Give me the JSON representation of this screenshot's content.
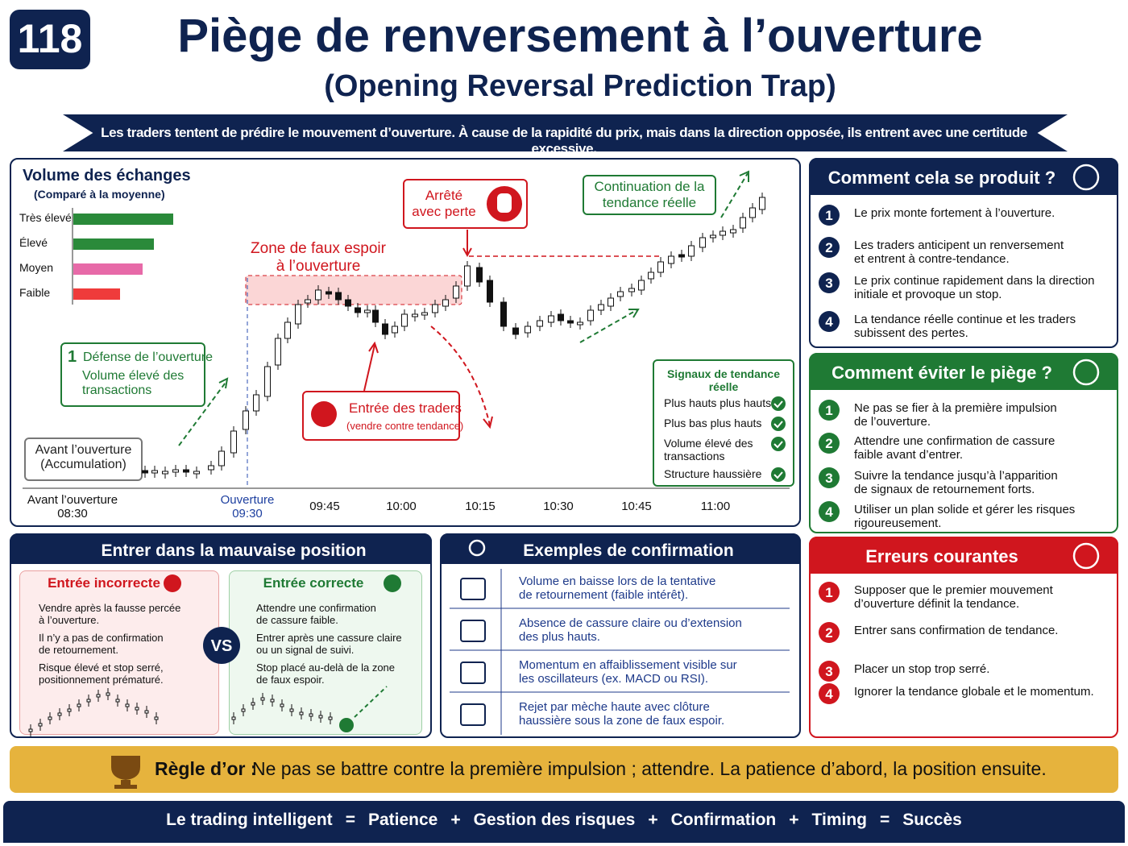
{
  "header": {
    "number": "118",
    "title": "Piège de renversement à l’ouverture",
    "subtitle": "(Opening Reversal Prediction Trap)",
    "banner": "Les traders tentent de prédire le mouvement d’ouverture. À cause de la rapidité du prix, mais dans la direction opposée, ils entrent avec une certitude excessive."
  },
  "chart": {
    "volume_title": "Volume des échanges",
    "volume_subtitle": "(Comparé à la moyenne)",
    "volume_levels": [
      "Très élevé",
      "Élevé",
      "Moyen",
      "Faible"
    ],
    "fake_zone": "Zone de faux espoir\nà l’ouverture",
    "stopped": "Arrêté\navec perte",
    "continuation": "Continuation de la\ntendance réelle",
    "defense": {
      "number": "1",
      "title": "Défense de l’ouverture",
      "detail": "Volume élevé des\ntransactions"
    },
    "pre_open": "Avant l’ouverture\n(Accumulation)",
    "entry": {
      "title": "Entrée des traders",
      "detail": "(vendre contre tendance)"
    },
    "time_labels": [
      "Avant l’ouverture\n08:30",
      "Ouverture\n09:30",
      "09:45",
      "10:00",
      "10:15",
      "10:30",
      "10:45",
      "11:00"
    ],
    "signals": {
      "title": "Signaux de tendance réelle",
      "items": [
        "Plus hauts plus hauts",
        "Plus bas plus hauts",
        "Volume élevé des\ntransactions",
        "Structure haussière"
      ]
    }
  },
  "how": {
    "title": "Comment cela se produit ?",
    "steps": [
      {
        "n": "1",
        "text": "Le prix monte fortement à l’ouverture."
      },
      {
        "n": "2",
        "text": "Les traders anticipent un renversement\net entrent à contre-tendance."
      },
      {
        "n": "3",
        "text": "Le prix continue rapidement dans la direction\ninitiale et provoque un stop."
      },
      {
        "n": "4",
        "text": "La tendance réelle continue et les traders\nsubissent des pertes."
      }
    ]
  },
  "avoid": {
    "title": "Comment éviter le piège ?",
    "steps": [
      {
        "n": "1",
        "text": "Ne pas se fier à la première impulsion\nde l’ouverture."
      },
      {
        "n": "2",
        "text": "Attendre une confirmation de cassure\nfaible avant d’entrer."
      },
      {
        "n": "3",
        "text": "Suivre la tendance jusqu’à l’apparition\nde signaux de retournement forts."
      },
      {
        "n": "4",
        "text": "Utiliser un plan solide et gérer les risques\nrigoureusement."
      }
    ]
  },
  "errors": {
    "title": "Erreurs courantes",
    "steps": [
      {
        "n": "1",
        "text": "Supposer que le premier mouvement\nd’ouverture définit la tendance."
      },
      {
        "n": "2",
        "text": "Entrer sans confirmation de tendance."
      },
      {
        "n": "3",
        "text": "Placer un stop trop serré."
      },
      {
        "n": "4",
        "text": "Ignorer la tendance globale et le momentum."
      }
    ]
  },
  "wrong_position": {
    "title": "Entrer dans la mauvaise position",
    "incorrect": {
      "title": "Entrée incorrecte",
      "items": [
        "Vendre après la fausse percée\nà l’ouverture.",
        "Il n’y a pas de confirmation\nde retournement.",
        "Risque élevé et stop serré,\npositionnement prématuré."
      ]
    },
    "vs": "VS",
    "correct": {
      "title": "Entrée correcte",
      "items": [
        "Attendre une confirmation\nde cassure faible.",
        "Entrer après une cassure claire\nou un signal de suivi.",
        "Stop placé au-delà de la zone\nde faux espoir."
      ]
    }
  },
  "examples": {
    "title": "Exemples de confirmation",
    "items": [
      "Volume en baisse lors de la tentative\nde retournement (faible intérêt).",
      "Absence de cassure claire ou d’extension\ndes plus hauts.",
      "Momentum en affaiblissement visible sur\nles oscillateurs (ex. MACD ou RSI).",
      "Rejet par mèche haute avec clôture\nhaussière sous la zone de faux espoir."
    ]
  },
  "golden_rule": {
    "label": "Règle d’or :",
    "text": "Ne pas se battre contre la première impulsion ; attendre. La patience d’abord, la position ensuite."
  },
  "footer": [
    "Le trading intelligent",
    "=",
    "Patience",
    "+",
    "Gestion des risques",
    "+",
    "Confirmation",
    "+",
    "Timing",
    "=",
    "Succès"
  ]
}
